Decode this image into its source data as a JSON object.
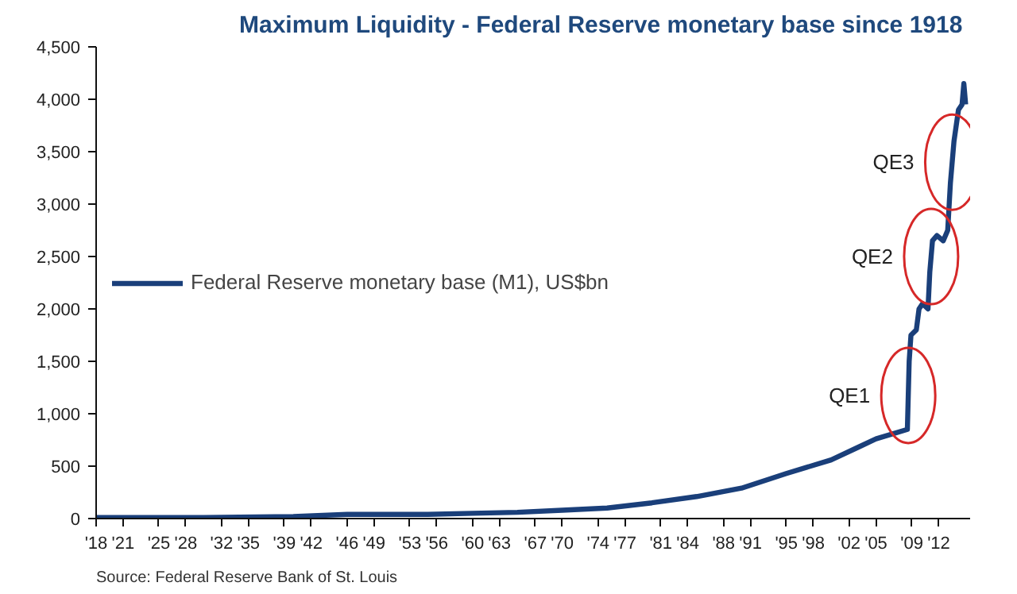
{
  "chart_data": {
    "type": "line",
    "title": "Maximum Liquidity - Federal Reserve monetary base since 1918",
    "x": [
      1918,
      1930,
      1940,
      1946,
      1955,
      1960,
      1965,
      1970,
      1975,
      1980,
      1985,
      1990,
      1995,
      2000,
      2003,
      2005,
      2008.5,
      2008.7,
      2008.9,
      2009.5,
      2009.8,
      2010.2,
      2010.8,
      2011.0,
      2011.3,
      2011.8,
      2012.5,
      2013.0,
      2013.3,
      2013.7,
      2014.2,
      2014.6,
      2014.8,
      2015.0
    ],
    "series": [
      {
        "name": "Federal Reserve monetary base (M1), US$bn",
        "color": "#1a3f7a",
        "values": [
          10,
          10,
          20,
          40,
          40,
          50,
          60,
          80,
          100,
          150,
          210,
          290,
          430,
          560,
          680,
          760,
          850,
          1500,
          1750,
          1800,
          2000,
          2050,
          2000,
          2350,
          2650,
          2700,
          2650,
          2750,
          3200,
          3600,
          3900,
          3950,
          4150,
          3950
        ]
      }
    ],
    "xlim": [
      1918,
      2015.5
    ],
    "ylim": [
      0,
      4500
    ],
    "xticks": [
      {
        "value": 1918,
        "label": "'18"
      },
      {
        "value": 1921,
        "label": "'21"
      },
      {
        "value": 1925,
        "label": "'25"
      },
      {
        "value": 1928,
        "label": "'28"
      },
      {
        "value": 1932,
        "label": "'32"
      },
      {
        "value": 1935,
        "label": "'35"
      },
      {
        "value": 1939,
        "label": "'39"
      },
      {
        "value": 1942,
        "label": "'42"
      },
      {
        "value": 1946,
        "label": "'46"
      },
      {
        "value": 1949,
        "label": "'49"
      },
      {
        "value": 1953,
        "label": "'53"
      },
      {
        "value": 1956,
        "label": "'56"
      },
      {
        "value": 1960,
        "label": "'60"
      },
      {
        "value": 1963,
        "label": "'63"
      },
      {
        "value": 1967,
        "label": "'67"
      },
      {
        "value": 1970,
        "label": "'70"
      },
      {
        "value": 1974,
        "label": "'74"
      },
      {
        "value": 1977,
        "label": "'77"
      },
      {
        "value": 1981,
        "label": "'81"
      },
      {
        "value": 1984,
        "label": "'84"
      },
      {
        "value": 1988,
        "label": "'88"
      },
      {
        "value": 1991,
        "label": "'91"
      },
      {
        "value": 1995,
        "label": "'95"
      },
      {
        "value": 1998,
        "label": "'98"
      },
      {
        "value": 2002,
        "label": "'02"
      },
      {
        "value": 2005,
        "label": "'05"
      },
      {
        "value": 2009,
        "label": "'09"
      },
      {
        "value": 2012,
        "label": "'12"
      }
    ],
    "yticks": [
      {
        "value": 0,
        "label": "0"
      },
      {
        "value": 500,
        "label": "500"
      },
      {
        "value": 1000,
        "label": "1,000"
      },
      {
        "value": 1500,
        "label": "1,500"
      },
      {
        "value": 2000,
        "label": "2,000"
      },
      {
        "value": 2500,
        "label": "2,500"
      },
      {
        "value": 3000,
        "label": "3,000"
      },
      {
        "value": 3500,
        "label": "3,500"
      },
      {
        "value": 4000,
        "label": "4,000"
      },
      {
        "value": 4500,
        "label": "4,500"
      }
    ],
    "annotations": [
      {
        "text": "QE1",
        "x": 2008.6,
        "y": 1175
      },
      {
        "text": "QE2",
        "x": 2011.15,
        "y": 2500
      },
      {
        "text": "QE3",
        "x": 2013.5,
        "y": 3400
      },
      "Source: Federal Reserve Bank of St. Louis"
    ],
    "grid": false,
    "legend": "left",
    "marker": "none",
    "line_style": "solid"
  }
}
